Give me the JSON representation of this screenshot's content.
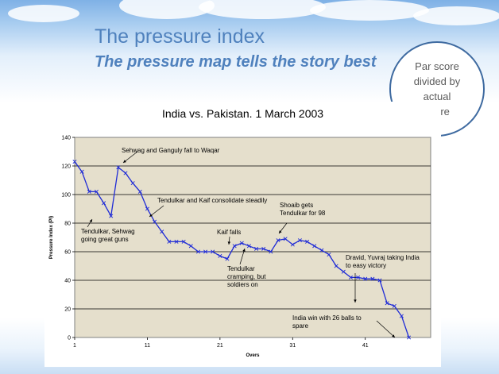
{
  "slide": {
    "title": "The pressure index",
    "subtitle": "The pressure map tells the story best",
    "callout_lines": [
      "Par score",
      "divided by",
      "actual",
      "score"
    ]
  },
  "chart_data": {
    "type": "line",
    "title": "India vs. Pakistan. 1 March 2003",
    "xlabel": "Overs",
    "ylabel": "Pressure Index (PI)",
    "xlim": [
      1,
      50
    ],
    "ylim": [
      0,
      140
    ],
    "x_ticks": [
      1,
      11,
      21,
      31,
      41
    ],
    "y_ticks": [
      0,
      20,
      40,
      60,
      80,
      100,
      120,
      140
    ],
    "grid": true,
    "line_color": "#1f2bd6",
    "plot_bg": "#e5dfcc",
    "x": [
      1,
      2,
      3,
      4,
      5,
      6,
      7,
      8,
      9,
      10,
      11,
      12,
      13,
      14,
      15,
      16,
      17,
      18,
      19,
      20,
      21,
      22,
      23,
      24,
      25,
      26,
      27,
      28,
      29,
      30,
      31,
      32,
      33,
      34,
      35,
      36,
      37,
      38,
      39,
      40,
      41,
      42,
      43,
      44,
      45,
      46,
      47,
      48
    ],
    "values": [
      123,
      116,
      102,
      102,
      94,
      85,
      119,
      115,
      108,
      102,
      90,
      81,
      74,
      67,
      67,
      67,
      64,
      60,
      60,
      60,
      57,
      55,
      64,
      66,
      64,
      62,
      62,
      60,
      68,
      69,
      65,
      68,
      67,
      64,
      61,
      58,
      50,
      46,
      42,
      42,
      41,
      41,
      40,
      24,
      22,
      15,
      0,
      null
    ],
    "annotations": [
      {
        "text": "Sehwag and Ganguly fall to Waqar",
        "x": 7,
        "y": 119
      },
      {
        "text": "Tendulkar and Kaif consolidate steadily",
        "x": 11,
        "y": 90
      },
      {
        "lines": [
          "Tendulkar, Sehwag",
          "going great guns"
        ],
        "x": 4,
        "y": 100
      },
      {
        "text": "Kaif falls",
        "x": 23,
        "y": 64
      },
      {
        "lines": [
          "Shoaib gets",
          "Tendulkar for 98"
        ],
        "x": 30,
        "y": 69
      },
      {
        "lines": [
          "Tendulkar",
          "cramping, but",
          "soldiers on"
        ],
        "x": 26,
        "y": 62
      },
      {
        "lines": [
          "Dravid, Yuvraj taking India",
          "to easy victory"
        ],
        "x": 44,
        "y": 24
      },
      {
        "lines": [
          "India win with 26 balls to",
          "spare"
        ],
        "x": 47,
        "y": 0
      }
    ]
  }
}
